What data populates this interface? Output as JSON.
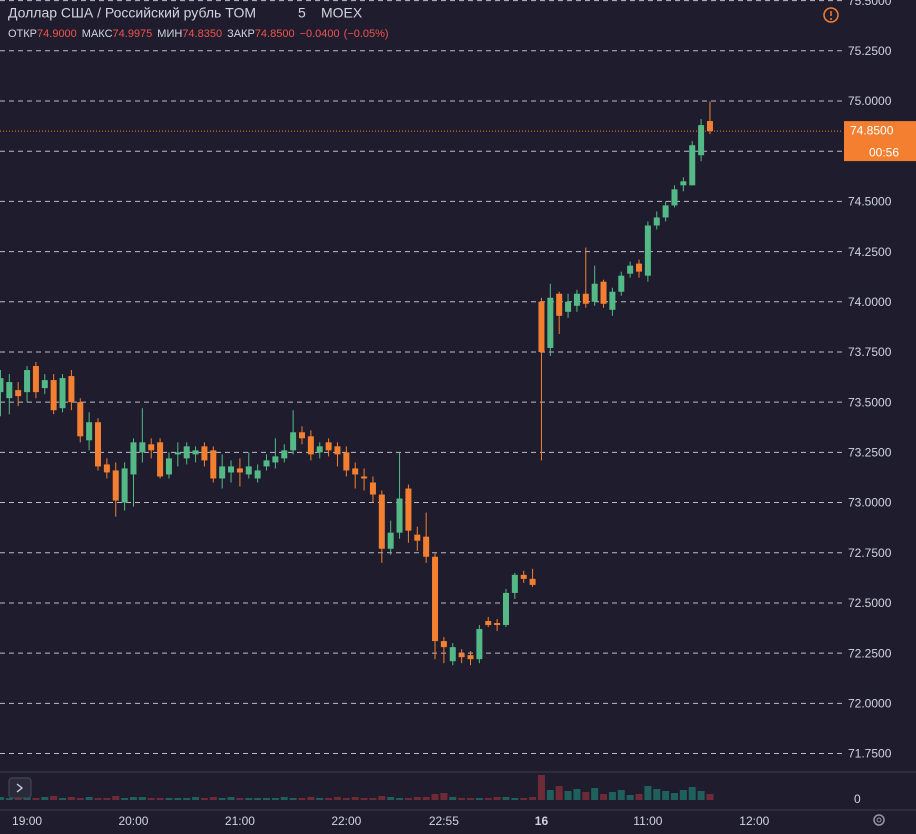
{
  "chart_data": {
    "type": "candlestick",
    "title": "Доллар США / Российский рубль TOM",
    "interval": "5",
    "exchange": "MOEX",
    "legend": [
      {
        "label": "ОТКР",
        "value": 74.9,
        "value_label": "74.9000"
      },
      {
        "label": "МАКС",
        "value": 74.9975,
        "value_label": "74.9975"
      },
      {
        "label": "МИН",
        "value": 74.835,
        "value_label": "74.8350"
      },
      {
        "label": "ЗАКР",
        "value": 74.85,
        "value_label": "74.8500"
      }
    ],
    "change": {
      "value": -0.04,
      "label": "−0.0400"
    },
    "change_percent": {
      "value": -0.05,
      "label": "(−0.05%)"
    },
    "up_color": "#53b987",
    "down_color": "#f57f30",
    "volume_up_color": "#1f5f5c",
    "volume_down_color": "#6e2b37",
    "grid": true,
    "xlim": [
      -0.05,
      95
    ],
    "xticks": [
      {
        "value": 3,
        "label": "19:00"
      },
      {
        "value": 15,
        "label": "20:00"
      },
      {
        "value": 27,
        "label": "21:00"
      },
      {
        "value": 39,
        "label": "22:00"
      },
      {
        "value": 50,
        "label": "22:55"
      },
      {
        "value": 61,
        "label": "16"
      },
      {
        "value": 73,
        "label": "11:00"
      },
      {
        "value": 85,
        "label": "12:00"
      }
    ],
    "ylim": [
      71.668,
      75.503
    ],
    "yticks": [
      {
        "value": 71.75,
        "label": "71.7500"
      },
      {
        "value": 72,
        "label": "72.0000"
      },
      {
        "value": 72.25,
        "label": "72.2500"
      },
      {
        "value": 72.5,
        "label": "72.5000"
      },
      {
        "value": 72.75,
        "label": "72.7500"
      },
      {
        "value": 73,
        "label": "73.0000"
      },
      {
        "value": 73.25,
        "label": "73.2500"
      },
      {
        "value": 73.5,
        "label": "73.5000"
      },
      {
        "value": 73.75,
        "label": "73.7500"
      },
      {
        "value": 74,
        "label": "74.0000"
      },
      {
        "value": 74.25,
        "label": "74.2500"
      },
      {
        "value": 74.5,
        "label": "74.5000"
      },
      {
        "value": 74.75,
        "label": "74.7500"
      },
      {
        "value": 75,
        "label": "75.0000"
      },
      {
        "value": 75.25,
        "label": "75.2500"
      },
      {
        "value": 75.5,
        "label": "75.5000"
      }
    ],
    "last_price": {
      "value": 74.85,
      "label": "74.8500"
    },
    "countdown": "00:56",
    "candles": {
      "open": [
        73.55,
        73.52,
        73.56,
        73.55,
        73.68,
        73.57,
        73.61,
        73.47,
        73.63,
        73.5,
        73.31,
        73.4,
        73.19,
        73.16,
        73.0,
        73.14,
        73.25,
        73.29,
        73.3,
        73.14,
        73.24,
        73.22,
        73.24,
        73.28,
        73.26,
        73.12,
        73.15,
        73.17,
        73.14,
        73.12,
        73.18,
        73.2,
        73.22,
        73.26,
        73.35,
        73.33,
        73.25,
        73.3,
        73.28,
        73.25,
        73.17,
        73.13,
        73.1,
        73.04,
        72.77,
        72.85,
        73.07,
        72.84,
        72.83,
        72.73,
        72.31,
        72.21,
        72.25,
        72.24,
        72.22,
        72.41,
        72.4,
        72.39,
        72.55,
        72.64,
        72.62,
        74.0,
        73.77,
        74.04,
        73.95,
        73.98,
        74.04,
        74.0,
        74.1,
        73.96,
        74.05,
        74.14,
        74.19,
        74.13,
        74.38,
        74.42,
        74.48,
        74.58,
        74.58,
        74.73,
        74.9
      ],
      "high": [
        73.66,
        73.64,
        73.6,
        73.68,
        73.7,
        73.64,
        73.64,
        73.64,
        73.66,
        73.52,
        73.45,
        73.42,
        73.22,
        73.2,
        73.2,
        73.32,
        73.47,
        73.32,
        73.32,
        73.25,
        73.3,
        73.3,
        73.28,
        73.3,
        73.28,
        73.24,
        73.21,
        73.22,
        73.25,
        73.19,
        73.24,
        73.32,
        73.29,
        73.46,
        73.38,
        73.36,
        73.3,
        73.32,
        73.3,
        73.28,
        73.2,
        73.17,
        73.13,
        73.06,
        72.91,
        73.25,
        73.09,
        72.88,
        72.95,
        72.75,
        72.33,
        72.3,
        72.27,
        72.26,
        72.39,
        72.43,
        72.42,
        72.57,
        72.65,
        72.66,
        72.67,
        74.02,
        74.09,
        74.05,
        74.04,
        74.06,
        74.27,
        74.18,
        74.11,
        74.07,
        74.15,
        74.2,
        74.21,
        74.4,
        74.45,
        74.5,
        74.58,
        74.62,
        74.8,
        74.91,
        74.9975
      ],
      "low": [
        73.43,
        73.44,
        73.48,
        73.5,
        73.52,
        73.54,
        73.44,
        73.45,
        73.46,
        73.3,
        73.26,
        73.16,
        73.12,
        72.93,
        72.96,
        72.98,
        73.2,
        73.22,
        73.12,
        73.12,
        73.18,
        73.19,
        73.2,
        73.18,
        73.1,
        73.07,
        73.1,
        73.08,
        73.12,
        73.1,
        73.16,
        73.17,
        73.2,
        73.24,
        73.29,
        73.21,
        73.22,
        73.23,
        73.18,
        73.13,
        73.07,
        73.06,
        73.0,
        72.7,
        72.74,
        72.82,
        72.8,
        72.76,
        72.7,
        72.22,
        72.2,
        72.19,
        72.2,
        72.19,
        72.2,
        72.38,
        72.36,
        72.38,
        72.52,
        72.6,
        72.58,
        73.21,
        73.73,
        73.84,
        73.92,
        73.95,
        73.97,
        73.98,
        73.97,
        73.93,
        74.03,
        74.12,
        74.12,
        74.1,
        74.36,
        74.4,
        74.47,
        74.55,
        74.58,
        74.7,
        74.835
      ],
      "close": [
        73.62,
        73.6,
        73.53,
        73.66,
        73.55,
        73.61,
        73.46,
        73.62,
        73.5,
        73.33,
        73.4,
        73.18,
        73.15,
        73.01,
        73.17,
        73.3,
        73.3,
        73.26,
        73.13,
        73.22,
        73.25,
        73.28,
        73.26,
        73.21,
        73.12,
        73.18,
        73.18,
        73.15,
        73.18,
        73.16,
        73.21,
        73.23,
        73.26,
        73.35,
        73.32,
        73.24,
        73.28,
        73.26,
        73.24,
        73.16,
        73.14,
        73.12,
        73.04,
        72.77,
        72.85,
        73.02,
        72.86,
        72.81,
        72.73,
        72.31,
        72.28,
        72.28,
        72.23,
        72.22,
        72.37,
        72.39,
        72.39,
        72.55,
        72.64,
        72.62,
        72.59,
        73.75,
        74.02,
        73.93,
        74.0,
        74.04,
        73.99,
        74.09,
        73.99,
        74.05,
        74.13,
        74.18,
        74.15,
        74.38,
        74.42,
        74.48,
        74.56,
        74.6,
        74.78,
        74.88,
        74.85
      ]
    },
    "volume": {
      "ylim": [
        0,
        30
      ],
      "yticks": [
        0
      ],
      "values": [
        3,
        2,
        2,
        3,
        2,
        3,
        4,
        2,
        3,
        2,
        3,
        2,
        2,
        4,
        2,
        3,
        3,
        2,
        2,
        2,
        2,
        2,
        3,
        2,
        3,
        2,
        3,
        2,
        2,
        2,
        2,
        2,
        3,
        2,
        2,
        3,
        2,
        2,
        3,
        2,
        3,
        2,
        2,
        4,
        3,
        2,
        2,
        3,
        3,
        6,
        7,
        3,
        2,
        2,
        2,
        2,
        3,
        3,
        2,
        2,
        3,
        25,
        10,
        14,
        9,
        11,
        8,
        12,
        6,
        8,
        10,
        5,
        6,
        14,
        11,
        9,
        7,
        10,
        13,
        9,
        6
      ]
    }
  }
}
